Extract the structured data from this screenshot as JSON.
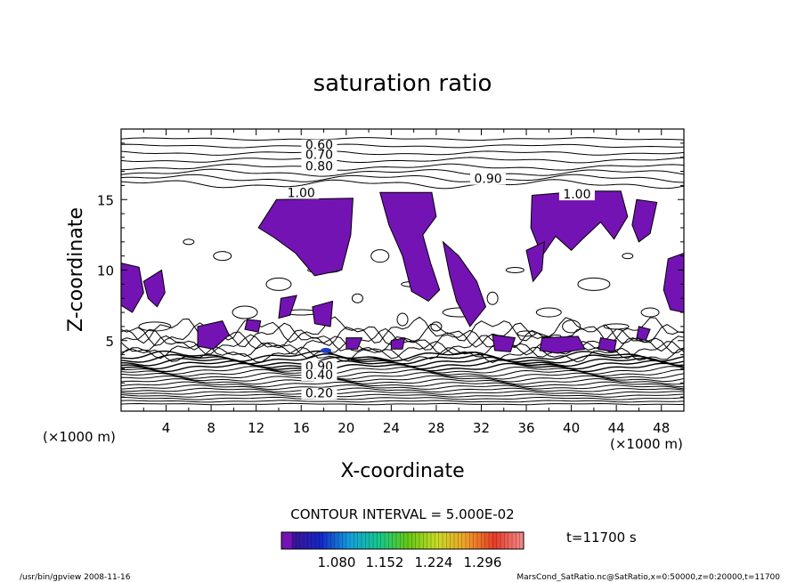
{
  "chart_data": {
    "type": "contour",
    "title": "saturation ratio",
    "xlabel": "X-coordinate",
    "ylabel": "Z-coordinate",
    "x_unit_label": "(×1000 m)",
    "x_unit_label_right": "(×1000 m)",
    "xlim": [
      0,
      50
    ],
    "ylim": [
      0,
      20
    ],
    "x_ticks": [
      4,
      8,
      12,
      16,
      20,
      24,
      28,
      32,
      36,
      40,
      44,
      48
    ],
    "y_ticks": [
      5,
      10,
      15
    ],
    "contour_interval_text": "CONTOUR INTERVAL = 5.000E-02",
    "time_text": "t=11700 s",
    "colorbar_labels": [
      "1.080",
      "1.152",
      "1.224",
      "1.296"
    ],
    "colorbar_colors": [
      "#3c1296",
      "#1428c8",
      "#14a0dc",
      "#14c88c",
      "#64c814",
      "#c8dc28",
      "#f0a028",
      "#e83c28",
      "#f08c8c"
    ],
    "supersaturated_color": "#7413b4",
    "contour_labels": [
      {
        "text": "0.60",
        "x": 17.6,
        "z": 18.7
      },
      {
        "text": "0.70",
        "x": 17.6,
        "z": 18.0
      },
      {
        "text": "0.80",
        "x": 17.6,
        "z": 17.2
      },
      {
        "text": "0.90",
        "x": 32.6,
        "z": 16.3
      },
      {
        "text": "1.00",
        "x": 16.0,
        "z": 15.3
      },
      {
        "text": "1.00",
        "x": 40.5,
        "z": 15.2
      },
      {
        "text": "0.90",
        "x": 17.6,
        "z": 3.0
      },
      {
        "text": "0.40",
        "x": 17.6,
        "z": 2.4
      },
      {
        "text": "0.20",
        "x": 17.6,
        "z": 1.1
      }
    ]
  },
  "footer": {
    "left": "/usr/bin/gpview   2008-11-16",
    "right": "MarsCond_SatRatio.nc@SatRatio,x=0:50000,z=0:20000,t=11700"
  }
}
